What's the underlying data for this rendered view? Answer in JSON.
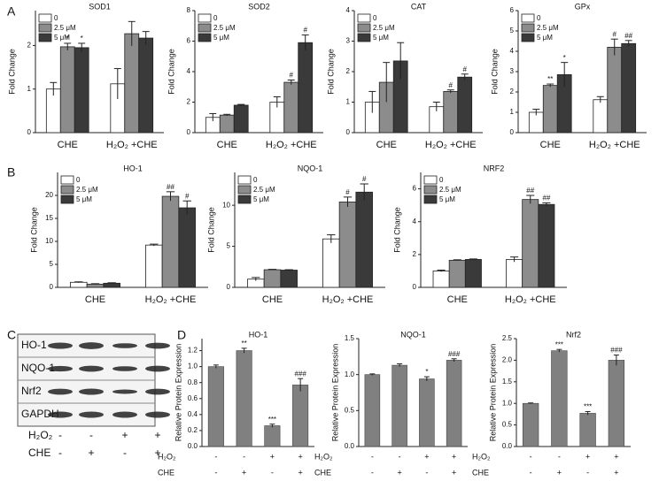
{
  "panel_labels": [
    "A",
    "B",
    "C",
    "D"
  ],
  "blot": {
    "labels": [
      "HO-1",
      "NQO-1",
      "Nrf2",
      "GAPDH"
    ],
    "conditions": [
      {
        "name": "H₂O₂",
        "values": [
          "-",
          "-",
          "+",
          "+"
        ]
      },
      {
        "name": "CHE",
        "values": [
          "-",
          "+",
          "-",
          "+"
        ]
      }
    ]
  },
  "chart_data": [
    {
      "type": "grouped_bar",
      "title": "SOD1",
      "ylabel": "Fold Change",
      "categories": [
        "CHE",
        "H₂O₂ +CHE"
      ],
      "series": [
        {
          "name": "0",
          "color": "#ffffff",
          "values": [
            1.0,
            1.12
          ],
          "errors": [
            0.15,
            0.35
          ]
        },
        {
          "name": "2.5 μM",
          "color": "#8c8c8c",
          "values": [
            1.97,
            2.27
          ],
          "errors": [
            0.08,
            0.28
          ]
        },
        {
          "name": "5 μM",
          "color": "#3a3a3a",
          "values": [
            1.95,
            2.17
          ],
          "errors": [
            0.1,
            0.15
          ]
        }
      ],
      "annotations": [
        {
          "series": 1,
          "index": 0,
          "text": "*",
          "color": "#222222"
        },
        {
          "series": 2,
          "index": 0,
          "text": "*",
          "color": "#222222"
        }
      ],
      "ylim": [
        0,
        2.8
      ],
      "yticks": [
        0,
        1,
        2
      ]
    },
    {
      "type": "grouped_bar",
      "title": "SOD2",
      "ylabel": "Fold Change",
      "categories": [
        "CHE",
        "H₂O₂ +CHE"
      ],
      "series": [
        {
          "name": "0",
          "color": "#ffffff",
          "values": [
            1.0,
            2.0
          ],
          "errors": [
            0.25,
            0.35
          ]
        },
        {
          "name": "2.5 μM",
          "color": "#8c8c8c",
          "values": [
            1.15,
            3.3
          ],
          "errors": [
            0.05,
            0.15
          ]
        },
        {
          "name": "5 μM",
          "color": "#3a3a3a",
          "values": [
            1.8,
            5.9
          ],
          "errors": [
            0.05,
            0.5
          ]
        }
      ],
      "annotations": [
        {
          "series": 1,
          "index": 1,
          "text": "#",
          "color": "#34458f"
        },
        {
          "series": 2,
          "index": 1,
          "text": "#",
          "color": "#34458f"
        }
      ],
      "ylim": [
        0,
        8
      ],
      "yticks": [
        0,
        2,
        4,
        6,
        8
      ]
    },
    {
      "type": "grouped_bar",
      "title": "CAT",
      "ylabel": "Fold Change",
      "categories": [
        "CHE",
        "H₂O₂ +CHE"
      ],
      "series": [
        {
          "name": "0",
          "color": "#ffffff",
          "values": [
            1.0,
            0.85
          ],
          "errors": [
            0.35,
            0.15
          ]
        },
        {
          "name": "2.5 μM",
          "color": "#8c8c8c",
          "values": [
            1.65,
            1.35
          ],
          "errors": [
            0.65,
            0.05
          ]
        },
        {
          "name": "5 μM",
          "color": "#3a3a3a",
          "values": [
            2.35,
            1.82
          ],
          "errors": [
            0.6,
            0.1
          ]
        }
      ],
      "annotations": [
        {
          "series": 1,
          "index": 1,
          "text": "#",
          "color": "#34458f"
        },
        {
          "series": 2,
          "index": 1,
          "text": "#",
          "color": "#34458f"
        }
      ],
      "ylim": [
        0,
        4
      ],
      "yticks": [
        0,
        1,
        2,
        3,
        4
      ]
    },
    {
      "type": "grouped_bar",
      "title": "GPx",
      "ylabel": "Fold Change",
      "categories": [
        "CHE",
        "H₂O₂ +CHE"
      ],
      "series": [
        {
          "name": "0",
          "color": "#ffffff",
          "values": [
            1.0,
            1.62
          ],
          "errors": [
            0.15,
            0.15
          ]
        },
        {
          "name": "2.5 μM",
          "color": "#8c8c8c",
          "values": [
            2.32,
            4.2
          ],
          "errors": [
            0.07,
            0.4
          ]
        },
        {
          "name": "5 μM",
          "color": "#3a3a3a",
          "values": [
            2.85,
            4.38
          ],
          "errors": [
            0.6,
            0.15
          ]
        }
      ],
      "annotations": [
        {
          "series": 1,
          "index": 0,
          "text": "**",
          "color": "#222222"
        },
        {
          "series": 2,
          "index": 0,
          "text": "*",
          "color": "#222222"
        },
        {
          "series": 1,
          "index": 1,
          "text": "#",
          "color": "#34458f"
        },
        {
          "series": 2,
          "index": 1,
          "text": "##",
          "color": "#34458f"
        }
      ],
      "ylim": [
        0,
        6
      ],
      "yticks": [
        0,
        1,
        2,
        3,
        4,
        5,
        6
      ]
    },
    {
      "type": "grouped_bar",
      "title": "HO-1",
      "ylabel": "Fold Change",
      "categories": [
        "CHE",
        "H₂O₂ +CHE"
      ],
      "series": [
        {
          "name": "0",
          "color": "#ffffff",
          "values": [
            1.1,
            9.2
          ],
          "errors": [
            0.1,
            0.2
          ]
        },
        {
          "name": "2.5 μM",
          "color": "#8c8c8c",
          "values": [
            0.7,
            19.8
          ],
          "errors": [
            0.1,
            1.0
          ]
        },
        {
          "name": "5 μM",
          "color": "#3a3a3a",
          "values": [
            0.9,
            17.3
          ],
          "errors": [
            0.1,
            1.5
          ]
        }
      ],
      "annotations": [
        {
          "series": 1,
          "index": 1,
          "text": "##",
          "color": "#34458f"
        },
        {
          "series": 2,
          "index": 1,
          "text": "#",
          "color": "#34458f"
        }
      ],
      "ylim": [
        0,
        25
      ],
      "yticks": [
        0,
        5,
        10,
        15,
        20
      ]
    },
    {
      "type": "grouped_bar",
      "title": "NQO-1",
      "ylabel": "Fold Change",
      "categories": [
        "CHE",
        "H₂O₂ +CHE"
      ],
      "series": [
        {
          "name": "0",
          "color": "#ffffff",
          "values": [
            1.0,
            5.9
          ],
          "errors": [
            0.2,
            0.5
          ]
        },
        {
          "name": "2.5 μM",
          "color": "#8c8c8c",
          "values": [
            2.15,
            10.4
          ],
          "errors": [
            0.05,
            0.6
          ]
        },
        {
          "name": "5 μM",
          "color": "#3a3a3a",
          "values": [
            2.1,
            11.6
          ],
          "errors": [
            0.05,
            1.0
          ]
        }
      ],
      "annotations": [
        {
          "series": 1,
          "index": 1,
          "text": "#",
          "color": "#34458f"
        },
        {
          "series": 2,
          "index": 1,
          "text": "#",
          "color": "#34458f"
        }
      ],
      "ylim": [
        0,
        14
      ],
      "yticks": [
        0,
        5,
        10
      ]
    },
    {
      "type": "grouped_bar",
      "title": "NRF2",
      "ylabel": "Fold Change",
      "categories": [
        "CHE",
        "H₂O₂ +CHE"
      ],
      "series": [
        {
          "name": "0",
          "color": "#ffffff",
          "values": [
            1.0,
            1.7
          ],
          "errors": [
            0.05,
            0.15
          ]
        },
        {
          "name": "2.5 μM",
          "color": "#8c8c8c",
          "values": [
            1.65,
            5.35
          ],
          "errors": [
            0.03,
            0.25
          ]
        },
        {
          "name": "5 μM",
          "color": "#3a3a3a",
          "values": [
            1.7,
            5.05
          ],
          "errors": [
            0.03,
            0.1
          ]
        }
      ],
      "annotations": [
        {
          "series": 1,
          "index": 1,
          "text": "##",
          "color": "#34458f"
        },
        {
          "series": 2,
          "index": 1,
          "text": "##",
          "color": "#34458f"
        }
      ],
      "ylim": [
        0,
        7
      ],
      "yticks": [
        0,
        2,
        4,
        6
      ]
    },
    {
      "type": "bar",
      "title": "HO-1",
      "ylabel": "Relative Protein Expression",
      "color": "#808080",
      "values": [
        1.0,
        1.2,
        0.26,
        0.77
      ],
      "errors": [
        0.02,
        0.03,
        0.02,
        0.08
      ],
      "conditions": [
        {
          "name": "H₂O₂",
          "values": [
            "-",
            "-",
            "+",
            "+"
          ]
        },
        {
          "name": "CHE",
          "values": [
            "-",
            "+",
            "-",
            "+"
          ]
        }
      ],
      "annotations": [
        {
          "index": 1,
          "text": "**",
          "color": "#222222"
        },
        {
          "index": 2,
          "text": "***",
          "color": "#222222"
        },
        {
          "index": 3,
          "text": "###",
          "color": "#34458f"
        }
      ],
      "ylim": [
        0,
        1.35
      ],
      "yticks": [
        {
          "value": 0,
          "label": "0.0"
        },
        0.2,
        0.4,
        0.6,
        0.8,
        {
          "value": 1,
          "label": "1.0"
        },
        1.2
      ]
    },
    {
      "type": "bar",
      "title": "NQO-1",
      "ylabel": "Relative Protein Expression",
      "color": "#808080",
      "values": [
        1.0,
        1.13,
        0.94,
        1.2
      ],
      "errors": [
        0.01,
        0.02,
        0.03,
        0.02
      ],
      "conditions": [
        {
          "name": "H₂O₂",
          "values": [
            "-",
            "-",
            "+",
            "+"
          ]
        },
        {
          "name": "CHE",
          "values": [
            "-",
            "+",
            "-",
            "+"
          ]
        }
      ],
      "annotations": [
        {
          "index": 2,
          "text": "*",
          "color": "#222222"
        },
        {
          "index": 3,
          "text": "###",
          "color": "#34458f"
        }
      ],
      "ylim": [
        0,
        1.5
      ],
      "yticks": [
        {
          "value": 0,
          "label": "0.0"
        },
        0.5,
        {
          "value": 1,
          "label": "1.0"
        },
        1.5
      ]
    },
    {
      "type": "bar",
      "title": "Nrf2",
      "ylabel": "Relative Protein Expression",
      "color": "#808080",
      "values": [
        1.0,
        2.22,
        0.77,
        2.0
      ],
      "errors": [
        0.01,
        0.03,
        0.04,
        0.12
      ],
      "conditions": [
        {
          "name": "H₂O₂",
          "values": [
            "-",
            "-",
            "+",
            "+"
          ]
        },
        {
          "name": "CHE",
          "values": [
            "-",
            "+",
            "-",
            "+"
          ]
        }
      ],
      "annotations": [
        {
          "index": 1,
          "text": "***",
          "color": "#222222"
        },
        {
          "index": 2,
          "text": "***",
          "color": "#222222"
        },
        {
          "index": 3,
          "text": "###",
          "color": "#34458f"
        }
      ],
      "ylim": [
        0,
        2.5
      ],
      "yticks": [
        {
          "value": 0,
          "label": "0.0"
        },
        0.5,
        {
          "value": 1,
          "label": "1.0"
        },
        1.5,
        {
          "value": 2,
          "label": "2.0"
        },
        2.5
      ]
    }
  ]
}
